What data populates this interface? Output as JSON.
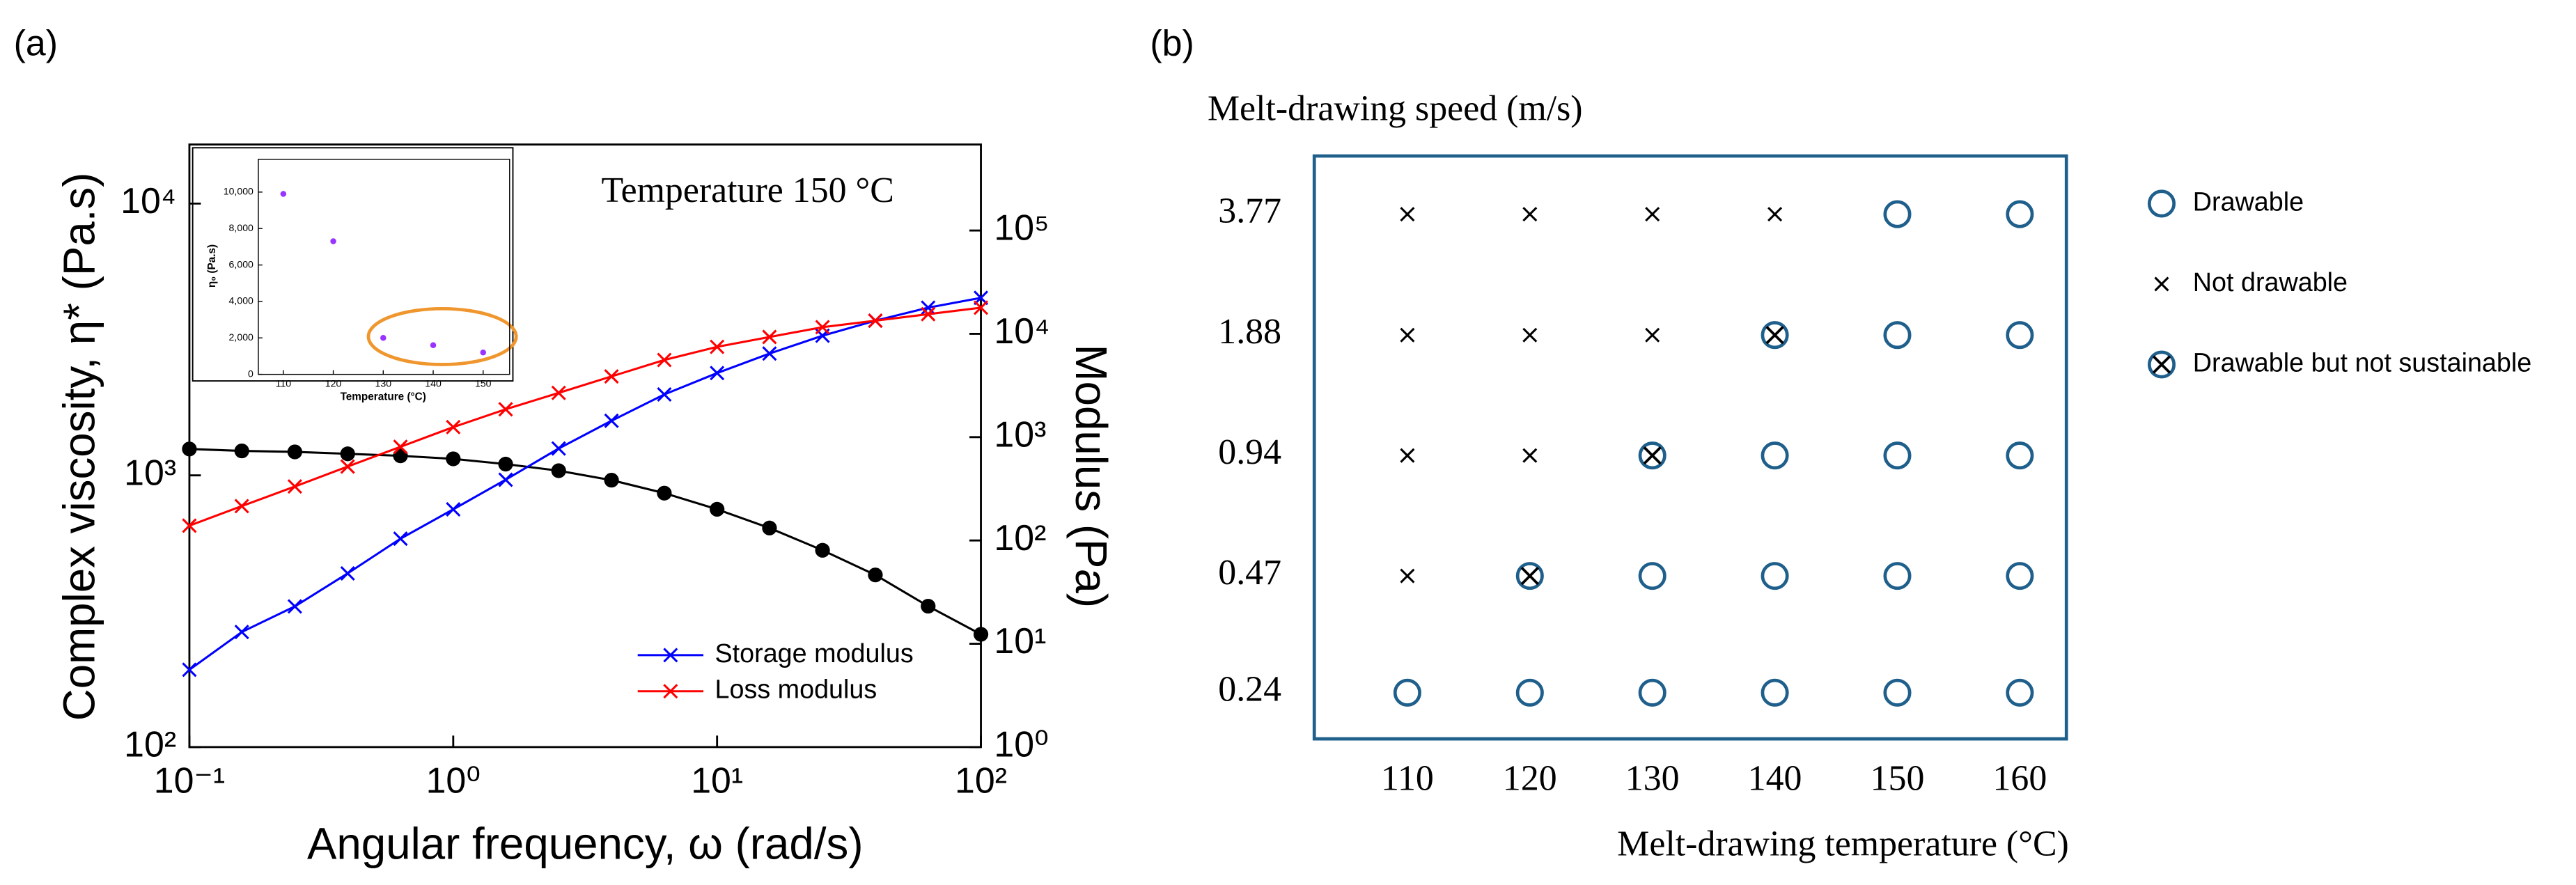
{
  "chart_data": [
    {
      "type": "line",
      "panel": "(a)",
      "annotation": "Temperature 150 °C",
      "xlabel": "Angular frequency, ω (rad/s)",
      "ylabel": "Complex viscosity, η* (Pa.s)",
      "y2label": "Modulus (Pa)",
      "xscale": "log",
      "yscale": "log",
      "y2scale": "log",
      "xlim": [
        0.1,
        100
      ],
      "ylim": [
        100,
        16500
      ],
      "y2lim": [
        1,
        680000
      ],
      "xticks": [
        {
          "value": 0.1,
          "label": "10⁻¹"
        },
        {
          "value": 1,
          "label": "10⁰"
        },
        {
          "value": 10,
          "label": "10¹"
        },
        {
          "value": 100,
          "label": "10²"
        }
      ],
      "yticks": [
        {
          "value": 100,
          "label": "10²"
        },
        {
          "value": 1000,
          "label": "10³"
        },
        {
          "value": 10000,
          "label": "10⁴"
        }
      ],
      "y2ticks": [
        {
          "value": 1,
          "label": "10⁰"
        },
        {
          "value": 10,
          "label": "10¹"
        },
        {
          "value": 100,
          "label": "10²"
        },
        {
          "value": 1000,
          "label": "10³"
        },
        {
          "value": 10000,
          "label": "10⁴"
        },
        {
          "value": 100000,
          "label": "10⁵"
        }
      ],
      "legend": "lower right",
      "x": [
        0.1,
        0.158,
        0.251,
        0.398,
        0.631,
        1,
        1.58,
        2.51,
        3.98,
        6.31,
        10,
        15.8,
        25.1,
        39.8,
        63.1,
        100
      ],
      "series": [
        {
          "color": "#000000",
          "marker": "o",
          "values": [
            1250,
            1230,
            1220,
            1200,
            1180,
            1150,
            1100,
            1040,
            960,
            860,
            750,
            640,
            530,
            430,
            330,
            260
          ]
        },
        {
          "name": "Storage modulus",
          "color": "#0000ff",
          "marker": "x",
          "axis": "y2",
          "values": [
            5.6,
            13,
            23,
            48,
            104,
            200,
            387,
            776,
            1440,
            2590,
            4170,
            6440,
            9590,
            13400,
            17900,
            22300
          ]
        },
        {
          "name": "Loss modulus",
          "color": "#ff0000",
          "marker": "x",
          "axis": "y2",
          "values": [
            139,
            215,
            333,
            519,
            806,
            1250,
            1860,
            2680,
            3870,
            5580,
            7480,
            9320,
            11600,
            13400,
            15500,
            17900
          ]
        }
      ],
      "inset": {
        "type": "scatter",
        "xlabel": "Temperature (°C)",
        "ylabel": "η₀ (Pa.s)",
        "xlim": [
          105,
          155.3
        ],
        "ylim": [
          0,
          11800
        ],
        "xticks": [
          110,
          120,
          130,
          140,
          150
        ],
        "yticks": [
          0,
          {
            "value": 2000,
            "label": "2,000"
          },
          {
            "value": 4000,
            "label": "4,000"
          },
          {
            "value": 6000,
            "label": "6,000"
          },
          {
            "value": 8000,
            "label": "8,000"
          },
          {
            "value": 10000,
            "label": "10,000"
          }
        ],
        "x": [
          110,
          120,
          130,
          140,
          150
        ],
        "values": [
          9900,
          7300,
          2000,
          1600,
          1200
        ],
        "color": "#9933ff",
        "marker": "dot"
      }
    },
    {
      "type": "scatter",
      "panel": "(b)",
      "xlabel": "Melt-drawing temperature (°C)",
      "ylabel": "Melt-drawing speed (m/s)",
      "yscale": "log",
      "xlim": [
        102.4,
        163.8
      ],
      "ylim": [
        0.184,
        5.27
      ],
      "xticks": [
        110,
        120,
        130,
        140,
        150,
        160
      ],
      "yticks": [
        0.24,
        0.47,
        0.94,
        1.88,
        3.77
      ],
      "legend": "right",
      "series": [
        {
          "name": "Drawable",
          "color": "#1f5f8b",
          "marker": "ring",
          "x": [
            150,
            160,
            150,
            160,
            140,
            150,
            160,
            130,
            140,
            150,
            160,
            110,
            120,
            130,
            140,
            150,
            160
          ],
          "values": [
            3.77,
            3.77,
            1.88,
            1.88,
            0.94,
            0.94,
            0.94,
            0.47,
            0.47,
            0.47,
            0.47,
            0.24,
            0.24,
            0.24,
            0.24,
            0.24,
            0.24
          ]
        },
        {
          "name": "Not drawable",
          "color": "#000000",
          "marker": "x",
          "x": [
            110,
            120,
            130,
            140,
            110,
            120,
            130,
            110,
            120,
            110
          ],
          "values": [
            3.77,
            3.77,
            3.77,
            3.77,
            1.88,
            1.88,
            1.88,
            0.94,
            0.94,
            0.47
          ]
        },
        {
          "name": "Drawable but not sustainable",
          "color": "#1f5f8b",
          "color2": "#000000",
          "marker": "ring-x",
          "x": [
            140,
            130,
            120
          ],
          "values": [
            1.88,
            0.94,
            0.47
          ]
        }
      ]
    }
  ]
}
